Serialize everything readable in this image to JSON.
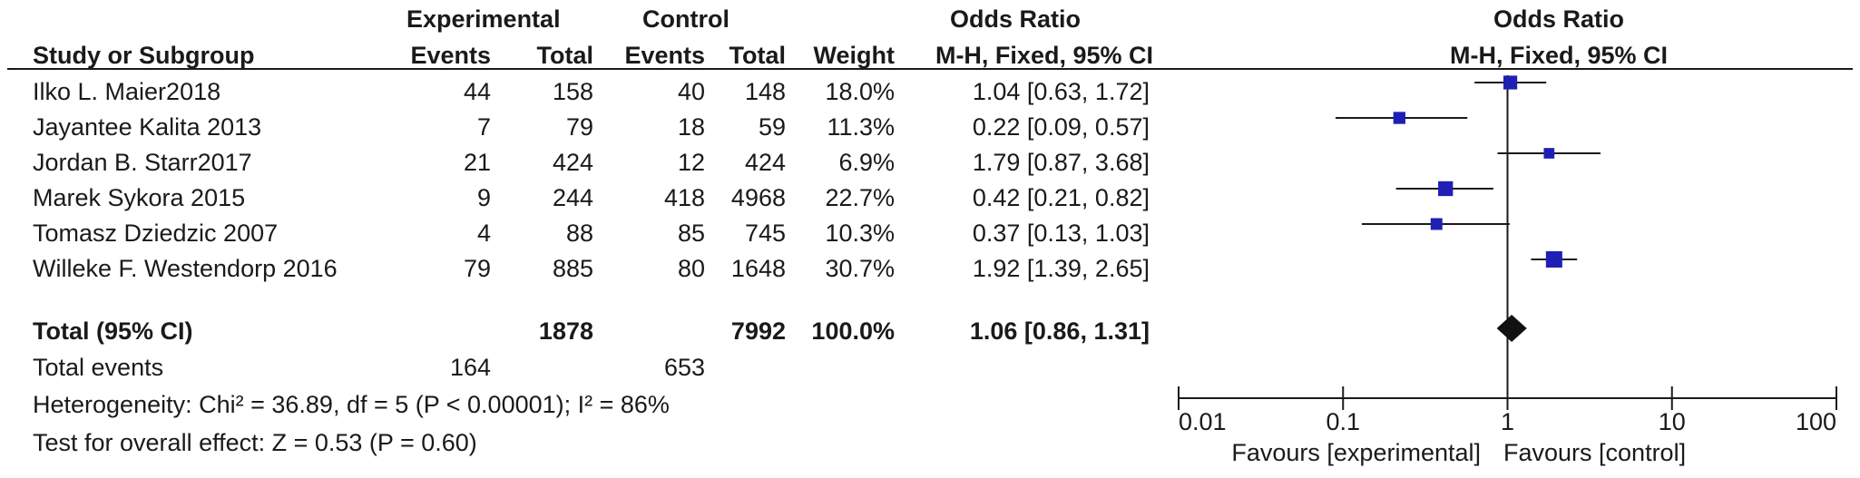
{
  "header": {
    "experimental": "Experimental",
    "control": "Control",
    "odds_ratio_table": "Odds Ratio",
    "odds_ratio_plot": "Odds Ratio"
  },
  "columns": {
    "study": "Study or Subgroup",
    "exp_events": "Events",
    "exp_total": "Total",
    "ctl_events": "Events",
    "ctl_total": "Total",
    "weight": "Weight",
    "or_method": "M-H, Fixed, 95% CI",
    "plot_method": "M-H, Fixed, 95% CI"
  },
  "total_row": {
    "label": "Total (95% CI)",
    "exp_total": "1878",
    "ctl_total": "7992",
    "weight": "100.0%",
    "or_text": "1.06 [0.86, 1.31]"
  },
  "total_events": {
    "label": "Total events",
    "exp": "164",
    "ctl": "653"
  },
  "footnotes": {
    "heterogeneity": "Heterogeneity: Chi² = 36.89, df = 5 (P < 0.00001); I² = 86%",
    "overall": "Test for overall effect: Z = 0.53 (P = 0.60)"
  },
  "axis": {
    "ticks": [
      "0.01",
      "0.1",
      "1",
      "10",
      "100"
    ],
    "favours_left": "Favours [experimental]",
    "favours_right": "Favours [control]"
  },
  "chart_data": {
    "type": "forest",
    "scale": "log",
    "xlim": [
      0.01,
      100
    ],
    "ticks": [
      0.01,
      0.1,
      1,
      10,
      100
    ],
    "null_line": 1,
    "marker_color": "#1f1fb4",
    "studies": [
      {
        "name": "Ilko L. Maier2018",
        "exp_events": "44",
        "exp_total": "158",
        "ctl_events": "40",
        "ctl_total": "148",
        "weight": "18.0%",
        "or_text": "1.04 [0.63, 1.72]",
        "or": 1.04,
        "lo": 0.63,
        "hi": 1.72
      },
      {
        "name": "Jayantee Kalita 2013",
        "exp_events": "7",
        "exp_total": "79",
        "ctl_events": "18",
        "ctl_total": "59",
        "weight": "11.3%",
        "or_text": "0.22 [0.09, 0.57]",
        "or": 0.22,
        "lo": 0.09,
        "hi": 0.57
      },
      {
        "name": "Jordan B. Starr2017",
        "exp_events": "21",
        "exp_total": "424",
        "ctl_events": "12",
        "ctl_total": "424",
        "weight": "6.9%",
        "or_text": "1.79 [0.87, 3.68]",
        "or": 1.79,
        "lo": 0.87,
        "hi": 3.68
      },
      {
        "name": "Marek Sykora 2015",
        "exp_events": "9",
        "exp_total": "244",
        "ctl_events": "418",
        "ctl_total": "4968",
        "weight": "22.7%",
        "or_text": "0.42 [0.21, 0.82]",
        "or": 0.42,
        "lo": 0.21,
        "hi": 0.82
      },
      {
        "name": "Tomasz Dziedzic 2007",
        "exp_events": "4",
        "exp_total": "88",
        "ctl_events": "85",
        "ctl_total": "745",
        "weight": "10.3%",
        "or_text": "0.37 [0.13, 1.03]",
        "or": 0.37,
        "lo": 0.13,
        "hi": 1.03
      },
      {
        "name": "Willeke F. Westendorp 2016",
        "exp_events": "79",
        "exp_total": "885",
        "ctl_events": "80",
        "ctl_total": "1648",
        "weight": "30.7%",
        "or_text": "1.92 [1.39, 2.65]",
        "or": 1.92,
        "lo": 1.39,
        "hi": 2.65
      }
    ],
    "total": {
      "or": 1.06,
      "lo": 0.86,
      "hi": 1.31
    }
  }
}
